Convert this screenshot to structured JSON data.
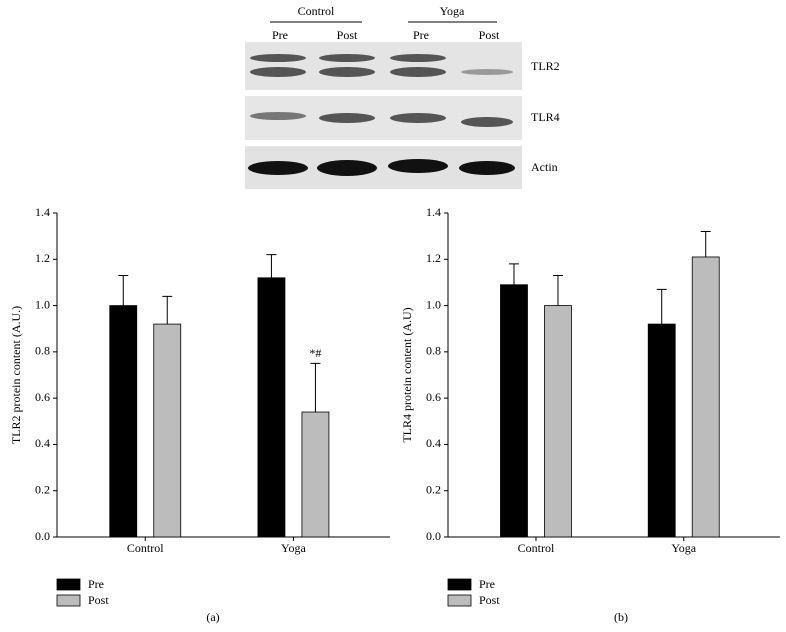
{
  "blot": {
    "groups": [
      "Control",
      "Yoga"
    ],
    "timepoints": [
      "Pre",
      "Post",
      "Pre",
      "Post"
    ],
    "rows": [
      "TLR2",
      "TLR4",
      "Actin"
    ]
  },
  "chart_data": [
    {
      "type": "bar",
      "panel": "(a)",
      "ylabel": "TLR2 protein content (A.U.)",
      "categories": [
        "Control",
        "Yoga"
      ],
      "series": [
        {
          "name": "Pre",
          "color": "#000000",
          "values": [
            1.0,
            1.12
          ],
          "errors": [
            0.13,
            0.1
          ]
        },
        {
          "name": "Post",
          "color": "#bcbcbc",
          "values": [
            0.92,
            0.54
          ],
          "errors": [
            0.12,
            0.21
          ],
          "annotations": [
            null,
            "*#"
          ]
        }
      ],
      "ylim": [
        0,
        1.4
      ],
      "yticks": [
        {
          "value": 0,
          "label": "0.0"
        },
        0.2,
        0.4,
        0.6,
        0.8,
        {
          "value": 1,
          "label": "1.0"
        },
        1.2,
        1.4
      ],
      "legend": "bottom-left"
    },
    {
      "type": "bar",
      "panel": "(b)",
      "ylabel": "TLR4 protein content (A.U)",
      "categories": [
        "Control",
        "Yoga"
      ],
      "series": [
        {
          "name": "Pre",
          "color": "#000000",
          "values": [
            1.09,
            0.92
          ],
          "errors": [
            0.09,
            0.15
          ]
        },
        {
          "name": "Post",
          "color": "#bcbcbc",
          "values": [
            1.0,
            1.21
          ],
          "errors": [
            0.13,
            0.11
          ]
        }
      ],
      "ylim": [
        0,
        1.4
      ],
      "yticks": [
        {
          "value": 0,
          "label": "0.0"
        },
        0.2,
        0.4,
        0.6,
        0.8,
        {
          "value": 1,
          "label": "1.0"
        },
        1.2,
        1.4
      ],
      "legend": "bottom-left"
    }
  ]
}
